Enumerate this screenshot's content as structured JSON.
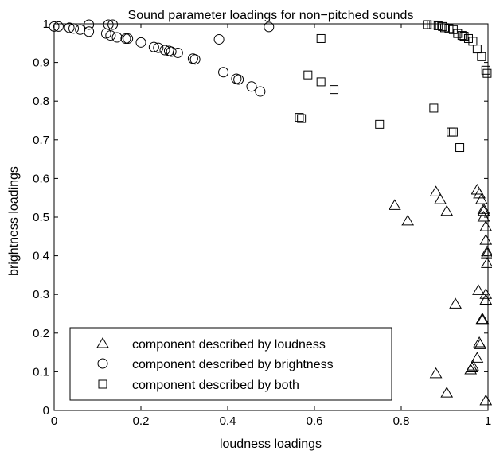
{
  "chart_data": {
    "type": "scatter",
    "title": "Sound parameter loadings for non−pitched sounds",
    "xlabel": "loudness loadings",
    "ylabel": "brightness loadings",
    "xlim": [
      0,
      1
    ],
    "ylim": [
      0,
      1
    ],
    "xticks": [
      0,
      0.2,
      0.4,
      0.6,
      0.8,
      1
    ],
    "yticks": [
      0,
      0.1,
      0.2,
      0.3,
      0.4,
      0.5,
      0.6,
      0.7,
      0.8,
      0.9,
      1
    ],
    "xtick_labels": [
      "0",
      "0.2",
      "0.4",
      "0.6",
      "0.8",
      "1"
    ],
    "ytick_labels": [
      "0",
      "0.1",
      "0.2",
      "0.3",
      "0.4",
      "0.5",
      "0.6",
      "0.7",
      "0.8",
      "0.9",
      "1"
    ],
    "grid": false,
    "legend_position": "bottom-left",
    "series": [
      {
        "name": "component described by loudness",
        "marker": "triangle",
        "points": [
          [
            0.785,
            0.53
          ],
          [
            0.815,
            0.49
          ],
          [
            0.88,
            0.565
          ],
          [
            0.89,
            0.545
          ],
          [
            0.905,
            0.515
          ],
          [
            0.925,
            0.275
          ],
          [
            0.88,
            0.095
          ],
          [
            0.905,
            0.045
          ],
          [
            0.975,
            0.57
          ],
          [
            0.98,
            0.56
          ],
          [
            0.985,
            0.545
          ],
          [
            0.99,
            0.52
          ],
          [
            0.99,
            0.515
          ],
          [
            0.99,
            0.5
          ],
          [
            0.995,
            0.475
          ],
          [
            0.995,
            0.44
          ],
          [
            0.998,
            0.41
          ],
          [
            0.998,
            0.405
          ],
          [
            0.998,
            0.38
          ],
          [
            0.978,
            0.31
          ],
          [
            0.995,
            0.3
          ],
          [
            0.995,
            0.285
          ],
          [
            0.98,
            0.175
          ],
          [
            0.982,
            0.17
          ],
          [
            0.988,
            0.235
          ],
          [
            0.986,
            0.235
          ],
          [
            0.975,
            0.135
          ],
          [
            0.965,
            0.115
          ],
          [
            0.96,
            0.105
          ],
          [
            0.963,
            0.11
          ],
          [
            0.995,
            0.025
          ]
        ]
      },
      {
        "name": "component described by brightness",
        "marker": "circle",
        "points": [
          [
            0.0,
            0.993
          ],
          [
            0.01,
            0.993
          ],
          [
            0.035,
            0.99
          ],
          [
            0.045,
            0.988
          ],
          [
            0.06,
            0.985
          ],
          [
            0.08,
            0.98
          ],
          [
            0.08,
            0.998
          ],
          [
            0.125,
            0.998
          ],
          [
            0.135,
            0.998
          ],
          [
            0.12,
            0.975
          ],
          [
            0.13,
            0.97
          ],
          [
            0.145,
            0.965
          ],
          [
            0.165,
            0.962
          ],
          [
            0.17,
            0.962
          ],
          [
            0.2,
            0.952
          ],
          [
            0.23,
            0.94
          ],
          [
            0.24,
            0.938
          ],
          [
            0.255,
            0.932
          ],
          [
            0.265,
            0.93
          ],
          [
            0.27,
            0.928
          ],
          [
            0.285,
            0.925
          ],
          [
            0.32,
            0.91
          ],
          [
            0.325,
            0.908
          ],
          [
            0.38,
            0.96
          ],
          [
            0.39,
            0.875
          ],
          [
            0.42,
            0.858
          ],
          [
            0.425,
            0.856
          ],
          [
            0.455,
            0.838
          ],
          [
            0.475,
            0.825
          ],
          [
            0.495,
            0.992
          ]
        ]
      },
      {
        "name": "component described by both",
        "marker": "square",
        "points": [
          [
            0.565,
            0.758
          ],
          [
            0.57,
            0.755
          ],
          [
            0.585,
            0.868
          ],
          [
            0.615,
            0.962
          ],
          [
            0.615,
            0.85
          ],
          [
            0.645,
            0.83
          ],
          [
            0.75,
            0.74
          ],
          [
            0.875,
            0.782
          ],
          [
            0.915,
            0.72
          ],
          [
            0.92,
            0.72
          ],
          [
            0.935,
            0.68
          ],
          [
            0.86,
            0.998
          ],
          [
            0.87,
            0.997
          ],
          [
            0.875,
            0.997
          ],
          [
            0.885,
            0.995
          ],
          [
            0.895,
            0.993
          ],
          [
            0.9,
            0.99
          ],
          [
            0.91,
            0.988
          ],
          [
            0.92,
            0.985
          ],
          [
            0.93,
            0.975
          ],
          [
            0.94,
            0.97
          ],
          [
            0.945,
            0.968
          ],
          [
            0.955,
            0.962
          ],
          [
            0.965,
            0.955
          ],
          [
            0.975,
            0.935
          ],
          [
            0.985,
            0.915
          ],
          [
            0.995,
            0.88
          ],
          [
            0.998,
            0.872
          ]
        ]
      }
    ]
  }
}
